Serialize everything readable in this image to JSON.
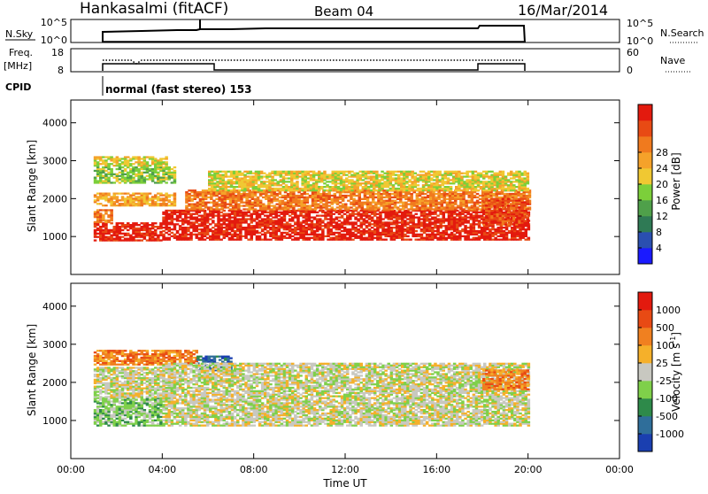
{
  "header": {
    "station": "Hankasalmi (fitACF)",
    "beam": "Beam 04",
    "date": "16/Mar/2014"
  },
  "status_panels": {
    "nsky_label": "N.Sky",
    "nsearch_label": "N.Search",
    "nsky_ticks": [
      "10^5",
      "10^0"
    ],
    "nsearch_ticks": [
      "10^5",
      "10^0"
    ],
    "freq_label_line1": "Freq.",
    "freq_label_line2": "[MHz]",
    "freq_ticks": [
      "18",
      "8"
    ],
    "nave_label": "Nave",
    "nave_ticks": [
      "60",
      "0"
    ],
    "cpid_label": "CPID",
    "cpid_text": "normal (fast stereo) 153"
  },
  "chart_data": [
    {
      "type": "heatmap",
      "name": "power-panel",
      "xlabel": "",
      "ylabel": "Slant Range [km]",
      "x_ticks": [
        "00:00",
        "04:00",
        "08:00",
        "12:00",
        "16:00",
        "20:00",
        "00:00"
      ],
      "x_range_hours": [
        0,
        24
      ],
      "y_ticks": [
        1000,
        2000,
        3000,
        4000
      ],
      "ylim": [
        0,
        4600
      ],
      "colorbar": {
        "label": "Power [dB]",
        "ticks": [
          "4",
          "8",
          "12",
          "16",
          "20",
          "24",
          "28"
        ],
        "colors": [
          "#1a1aff",
          "#2a4fb0",
          "#2f7a55",
          "#4fa04a",
          "#7ccf3a",
          "#f0c832",
          "#f5a22a",
          "#f07a1e",
          "#e84a14",
          "#e31a0e"
        ]
      },
      "regions": [
        {
          "t": [
            1.0,
            4.0
          ],
          "r": [
            880,
            1360
          ],
          "level": 9
        },
        {
          "t": [
            1.0,
            1.8
          ],
          "r": [
            1360,
            1700
          ],
          "level": 7
        },
        {
          "t": [
            1.0,
            4.5
          ],
          "r": [
            1800,
            2150
          ],
          "level": 6
        },
        {
          "t": [
            1.0,
            4.5
          ],
          "r": [
            2400,
            2850
          ],
          "level": 4
        },
        {
          "t": [
            1.0,
            4.2
          ],
          "r": [
            2850,
            3100
          ],
          "level": 5
        },
        {
          "t": [
            4.0,
            20.0
          ],
          "r": [
            900,
            1700
          ],
          "level": 9
        },
        {
          "t": [
            5.0,
            20.0
          ],
          "r": [
            1700,
            2200
          ],
          "level": 7
        },
        {
          "t": [
            6.0,
            20.0
          ],
          "r": [
            2200,
            2700
          ],
          "level": 5
        },
        {
          "t": [
            18.0,
            20.0
          ],
          "r": [
            1300,
            2000
          ],
          "level": 8
        }
      ]
    },
    {
      "type": "heatmap",
      "name": "velocity-panel",
      "xlabel": "Time UT",
      "ylabel": "Slant Range [km]",
      "x_ticks": [
        "00:00",
        "04:00",
        "08:00",
        "12:00",
        "16:00",
        "20:00",
        "00:00"
      ],
      "x_range_hours": [
        0,
        24
      ],
      "y_ticks": [
        1000,
        2000,
        3000,
        4000
      ],
      "ylim": [
        0,
        4600
      ],
      "colorbar": {
        "label": "Velocity [m s^-1]",
        "ticks": [
          "1000",
          "500",
          "100",
          "25",
          "-25",
          "-100",
          "-500",
          "-1000"
        ],
        "colors": [
          "#1a3fb0",
          "#2f6e9a",
          "#2e8a4a",
          "#7fd04a",
          "#c8c8c0",
          "#f5b02a",
          "#f08020",
          "#e84a14",
          "#e31a0e"
        ]
      },
      "regions": [
        {
          "t": [
            1.0,
            4.0
          ],
          "r": [
            850,
            1600
          ],
          "level": 3
        },
        {
          "t": [
            1.0,
            4.5
          ],
          "r": [
            1600,
            2400
          ],
          "level": 4
        },
        {
          "t": [
            1.0,
            5.5
          ],
          "r": [
            2450,
            2850
          ],
          "level": 6
        },
        {
          "t": [
            5.5,
            7.0
          ],
          "r": [
            2300,
            2700
          ],
          "level": 1
        },
        {
          "t": [
            4.0,
            20.0
          ],
          "r": [
            850,
            2500
          ],
          "level": 4
        },
        {
          "t": [
            18.0,
            20.0
          ],
          "r": [
            1800,
            2300
          ],
          "level": 6
        }
      ]
    }
  ]
}
